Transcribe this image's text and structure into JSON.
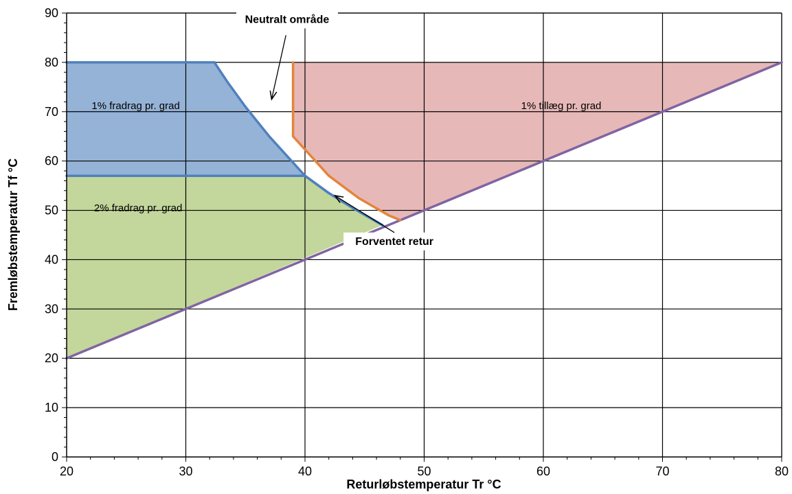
{
  "chart_data": {
    "type": "area",
    "xlabel": "Returløbstemperatur Tr °C",
    "ylabel": "Fremløbstemperatur Tf °C",
    "xlim": [
      20,
      80
    ],
    "ylim": [
      0,
      90
    ],
    "x_ticks": [
      20,
      30,
      40,
      50,
      60,
      70,
      80
    ],
    "y_ticks": [
      0,
      10,
      20,
      30,
      40,
      50,
      60,
      70,
      80,
      90
    ],
    "grid": true,
    "colors": {
      "blue_fill": "#95b3d7",
      "green_fill": "#c3d69b",
      "red_fill": "#e6b9b8",
      "blue_line": "#4f81bd",
      "orange_line": "#e4843b",
      "purple_line": "#8064a2"
    },
    "regions": [
      {
        "label": "1% fradrag pr. grad",
        "color": "#95b3d7",
        "polygon": [
          [
            20,
            80
          ],
          [
            32.4,
            80
          ],
          [
            33.5,
            76
          ],
          [
            35,
            71
          ],
          [
            37,
            65
          ],
          [
            40,
            57
          ],
          [
            20,
            57
          ]
        ],
        "label_at": [
          25.8,
          71.2
        ]
      },
      {
        "label": "2% fradrag pr. grad",
        "color": "#c3d69b",
        "polygon": [
          [
            20,
            57
          ],
          [
            40,
            57
          ],
          [
            42,
            53.5
          ],
          [
            44,
            50.5
          ],
          [
            46.5,
            47
          ],
          [
            20,
            20
          ]
        ],
        "label_at": [
          26,
          50.5
        ]
      },
      {
        "label": "1% tillæg pr. grad",
        "color": "#e6b9b8",
        "polygon": [
          [
            39,
            80
          ],
          [
            80,
            80
          ],
          [
            48,
            48
          ],
          [
            47,
            49
          ],
          [
            44.5,
            52.5
          ],
          [
            42,
            57
          ],
          [
            39,
            65
          ]
        ],
        "label_at": [
          61.5,
          71.2
        ]
      }
    ],
    "series": [
      {
        "name": "",
        "color": "#8064a2",
        "x": [
          20,
          80
        ],
        "y": [
          20,
          80
        ]
      },
      {
        "name": "",
        "color": "#4f81bd",
        "x": [
          20,
          40,
          42,
          44,
          46.5
        ],
        "y": [
          57,
          57,
          53.5,
          50.5,
          47
        ]
      },
      {
        "name": "",
        "color": "#4f81bd",
        "x": [
          32.4,
          33.5,
          35,
          37,
          40,
          42,
          44,
          46.5
        ],
        "y": [
          80,
          76,
          71,
          65,
          57,
          53.5,
          50.5,
          47
        ]
      },
      {
        "name": "",
        "color": "#4f81bd",
        "x": [
          20,
          32.4
        ],
        "y": [
          80,
          80
        ]
      },
      {
        "name": "",
        "color": "#e4843b",
        "x": [
          39,
          39,
          42,
          44.5,
          47,
          48
        ],
        "y": [
          80,
          65,
          57,
          52.5,
          49,
          48
        ]
      }
    ],
    "annotations": [
      {
        "text": "Neutralt område",
        "text_at": [
          38.5,
          88
        ],
        "arrow_from": [
          38.4,
          85.5
        ],
        "arrow_to": [
          37.2,
          72.5
        ]
      },
      {
        "text": "Forventet retur",
        "text_at": [
          47.5,
          43
        ],
        "arrow_from": [
          47.5,
          45.5
        ],
        "arrow_to": [
          42.5,
          53
        ]
      }
    ]
  }
}
